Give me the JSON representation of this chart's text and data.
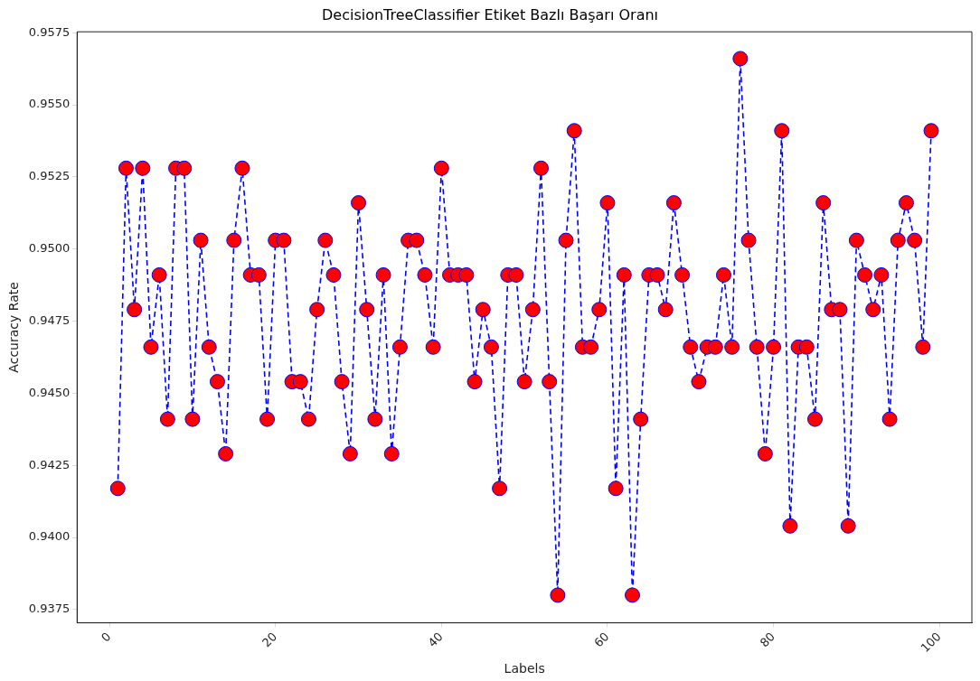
{
  "chart_data": {
    "type": "line",
    "title": "DecisionTreeClassifier Etiket Bazlı Başarı Oranı",
    "xlabel": "Labels",
    "ylabel": "Accuracy Rate",
    "x": [
      1,
      2,
      3,
      4,
      5,
      6,
      7,
      8,
      9,
      10,
      11,
      12,
      13,
      14,
      15,
      16,
      17,
      18,
      19,
      20,
      21,
      22,
      23,
      24,
      25,
      26,
      27,
      28,
      29,
      30,
      31,
      32,
      33,
      34,
      35,
      36,
      37,
      38,
      39,
      40,
      41,
      42,
      43,
      44,
      45,
      46,
      47,
      48,
      49,
      50,
      51,
      52,
      53,
      54,
      55,
      56,
      57,
      58,
      59,
      60,
      61,
      62,
      63,
      64,
      65,
      66,
      67,
      68,
      69,
      70,
      71,
      72,
      73,
      74,
      75,
      76,
      77,
      78,
      79,
      80,
      81,
      82,
      83,
      84,
      85,
      86,
      87,
      88,
      89,
      90,
      91,
      92,
      93,
      94,
      95,
      96,
      97,
      98,
      99
    ],
    "series": [
      {
        "color": "#0000ff",
        "values": [
          0.9417,
          0.9528,
          0.9479,
          0.9528,
          0.9466,
          0.9491,
          0.9441,
          0.9528,
          0.9528,
          0.9441,
          0.9503,
          0.9466,
          0.9454,
          0.9429,
          0.9503,
          0.9528,
          0.9491,
          0.9491,
          0.9441,
          0.9503,
          0.9503,
          0.9454,
          0.9454,
          0.9441,
          0.9479,
          0.9503,
          0.9491,
          0.9454,
          0.9429,
          0.9516,
          0.9479,
          0.9441,
          0.9491,
          0.9429,
          0.9466,
          0.9503,
          0.9503,
          0.9491,
          0.9466,
          0.9528,
          0.9491,
          0.9491,
          0.9491,
          0.9454,
          0.9479,
          0.9466,
          0.9417,
          0.9491,
          0.9491,
          0.9454,
          0.9479,
          0.9528,
          0.9454,
          0.938,
          0.9503,
          0.9541,
          0.9466,
          0.9466,
          0.9479,
          0.9516,
          0.9417,
          0.9491,
          0.938,
          0.9441,
          0.9491,
          0.9491,
          0.9479,
          0.9516,
          0.9491,
          0.9466,
          0.9454,
          0.9466,
          0.9466,
          0.9491,
          0.9466,
          0.9566,
          0.9503,
          0.9466,
          0.9429,
          0.9466,
          0.9541,
          0.9404,
          0.9466,
          0.9466,
          0.9441,
          0.9516,
          0.9479,
          0.9479,
          0.9404,
          0.9503,
          0.9491,
          0.9479,
          0.9491,
          0.9441,
          0.9503,
          0.9516,
          0.9503,
          0.9466,
          0.9541
        ]
      }
    ],
    "xlim": [
      -3.9,
      103.9
    ],
    "xticks": [
      0,
      20,
      40,
      60,
      80,
      100
    ],
    "ylim": [
      0.93704,
      0.95753
    ],
    "yticks": [
      0.9375,
      {
        "value": 0.94,
        "label": "0.9400"
      },
      0.9425,
      {
        "value": 0.945,
        "label": "0.9450"
      },
      0.9475,
      {
        "value": 0.95,
        "label": "0.9500"
      },
      0.9525,
      {
        "value": 0.955,
        "label": "0.9550"
      },
      0.9575
    ],
    "grid": false,
    "legend": false,
    "marker": "circle",
    "line_style": "dashed"
  }
}
